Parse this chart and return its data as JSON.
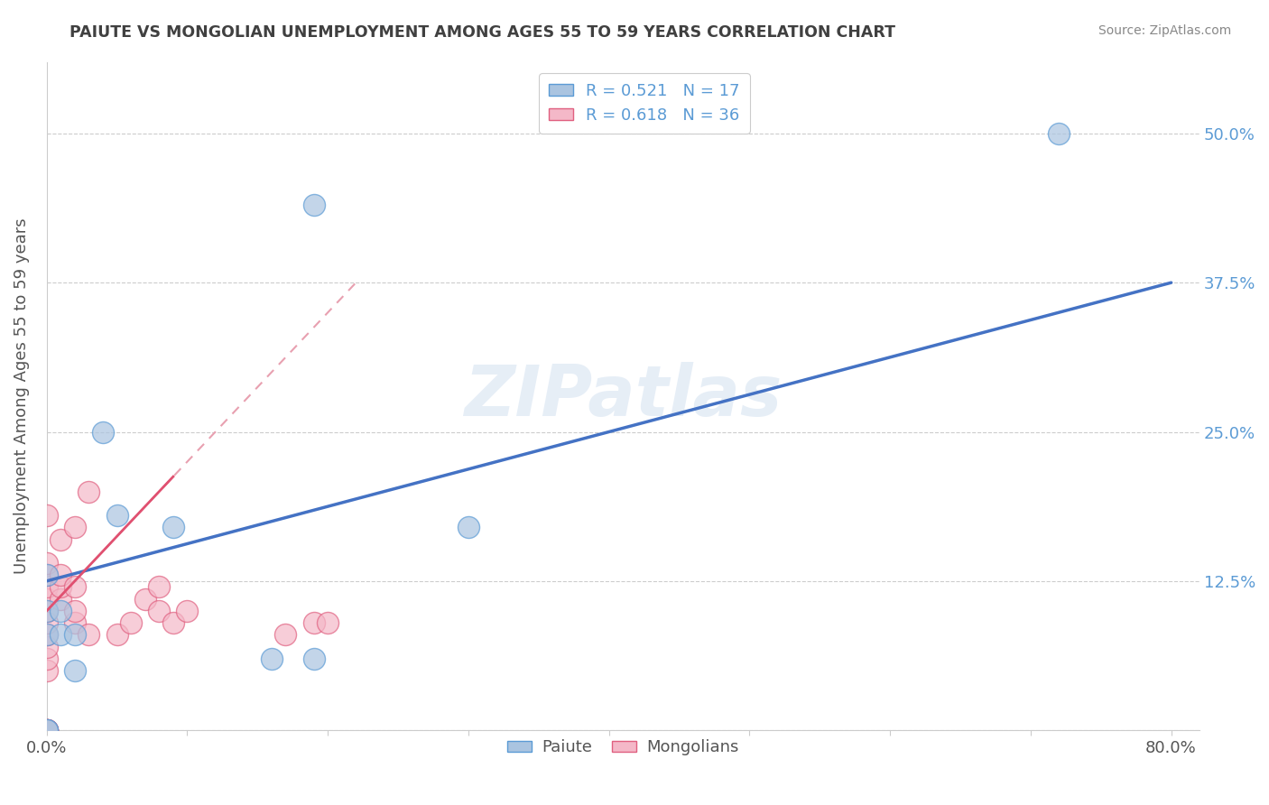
{
  "title": "PAIUTE VS MONGOLIAN UNEMPLOYMENT AMONG AGES 55 TO 59 YEARS CORRELATION CHART",
  "source": "Source: ZipAtlas.com",
  "ylabel": "Unemployment Among Ages 55 to 59 years",
  "xlim": [
    0.0,
    0.82
  ],
  "ylim": [
    0.0,
    0.56
  ],
  "ytick_positions": [
    0.0,
    0.125,
    0.25,
    0.375,
    0.5
  ],
  "ytick_labels": [
    "",
    "12.5%",
    "25.0%",
    "37.5%",
    "50.0%"
  ],
  "paiute_x": [
    0.0,
    0.0,
    0.0,
    0.0,
    0.0,
    0.01,
    0.01,
    0.02,
    0.02,
    0.04,
    0.05,
    0.09,
    0.16,
    0.19,
    0.19,
    0.72,
    0.3
  ],
  "paiute_y": [
    0.0,
    0.0,
    0.08,
    0.1,
    0.13,
    0.08,
    0.1,
    0.05,
    0.08,
    0.25,
    0.18,
    0.17,
    0.06,
    0.06,
    0.44,
    0.5,
    0.17
  ],
  "mongolian_x": [
    0.0,
    0.0,
    0.0,
    0.0,
    0.0,
    0.0,
    0.0,
    0.0,
    0.0,
    0.0,
    0.0,
    0.0,
    0.0,
    0.0,
    0.0,
    0.0,
    0.01,
    0.01,
    0.01,
    0.01,
    0.02,
    0.02,
    0.02,
    0.02,
    0.03,
    0.03,
    0.05,
    0.06,
    0.07,
    0.08,
    0.08,
    0.09,
    0.1,
    0.17,
    0.19,
    0.2
  ],
  "mongolian_y": [
    0.0,
    0.0,
    0.0,
    0.0,
    0.0,
    0.05,
    0.06,
    0.07,
    0.08,
    0.09,
    0.1,
    0.11,
    0.12,
    0.13,
    0.14,
    0.18,
    0.11,
    0.12,
    0.13,
    0.16,
    0.09,
    0.1,
    0.12,
    0.17,
    0.08,
    0.2,
    0.08,
    0.09,
    0.11,
    0.1,
    0.12,
    0.09,
    0.1,
    0.08,
    0.09,
    0.09
  ],
  "paiute_color": "#aac4e0",
  "mongolian_color": "#f4b8c8",
  "paiute_edge": "#5b9bd5",
  "mongolian_edge": "#e06080",
  "paiute_R": 0.521,
  "paiute_N": 17,
  "mongolian_R": 0.618,
  "mongolian_N": 36,
  "trend_blue_color": "#4472c4",
  "trend_pink_solid_color": "#e05070",
  "trend_pink_dash_color": "#e8a0b0",
  "watermark": "ZIPatlas",
  "legend_labels": [
    "Paiute",
    "Mongolians"
  ],
  "background_color": "#ffffff",
  "grid_color": "#cccccc",
  "title_color": "#404040",
  "label_color": "#5b9bd5"
}
